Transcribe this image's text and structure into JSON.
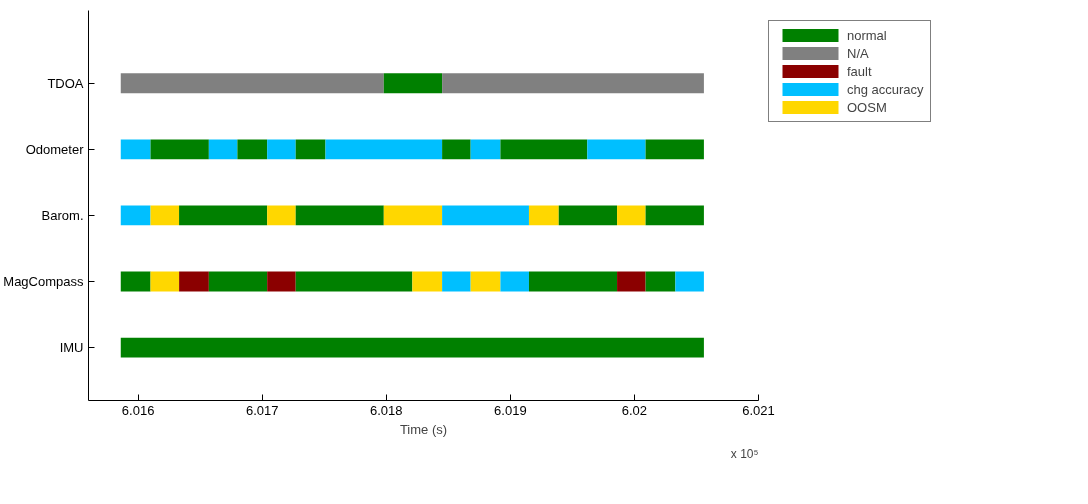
{
  "chart_data": {
    "type": "bar",
    "orientation": "horizontal",
    "xlabel": "Time (s)",
    "categories": [
      "TDOA",
      "Odometer",
      "Barom.",
      "MagCompass",
      "IMU"
    ],
    "xlim": [
      6.0156,
      6.021
    ],
    "xticks": [
      6.016,
      6.017,
      6.018,
      6.019,
      6.02,
      6.021
    ],
    "annotations": [
      "x 10⁵"
    ],
    "grid": false,
    "legend": "right",
    "series": [
      {
        "name": "normal",
        "color": "#008000",
        "base": [
          null,
          null,
          null,
          6.01586,
          6.01586
        ],
        "values": [
          null,
          null,
          null,
          0.00024,
          0.0047
        ]
      },
      {
        "name": "N/A",
        "color": "#808080",
        "base": [
          6.01586,
          null,
          null,
          null,
          null
        ],
        "values": [
          0.00212,
          null,
          null,
          null,
          null
        ]
      },
      {
        "name": "fault",
        "color": "#8b0000",
        "base": [
          null,
          null,
          null,
          6.01633,
          null
        ],
        "values": [
          null,
          null,
          null,
          0.00024,
          null
        ]
      },
      {
        "name": "chg accuracy",
        "color": "#00bfff",
        "base": [
          null,
          6.01586,
          6.01586,
          null,
          null
        ],
        "values": [
          null,
          0.00024,
          0.00024,
          null,
          null
        ]
      },
      {
        "name": "OOSM",
        "color": "#ffd700",
        "base": [
          null,
          null,
          6.0161,
          6.0161,
          null
        ],
        "values": [
          null,
          null,
          0.00023,
          0.00023,
          null
        ]
      },
      {
        "color": "#008000",
        "base": [
          6.01798,
          6.0161,
          null,
          null,
          null
        ],
        "values": [
          0.00047,
          0.00047,
          null,
          null,
          null
        ]
      },
      {
        "color": "#808080",
        "base": [
          6.01845,
          null,
          null,
          null,
          null
        ],
        "values": [
          0.00211,
          null,
          null,
          null,
          null
        ]
      },
      {
        "color": "#00bfff",
        "base": [
          null,
          6.01657,
          null,
          null,
          null
        ],
        "values": [
          null,
          0.00023,
          null,
          null,
          null
        ]
      },
      {
        "color": "#008000",
        "base": [
          null,
          null,
          6.01633,
          null,
          null
        ],
        "values": [
          null,
          null,
          0.00071,
          null,
          null
        ]
      },
      {
        "color": "#008000",
        "base": [
          null,
          6.0168,
          null,
          6.01657,
          null
        ],
        "values": [
          null,
          0.00024,
          null,
          0.00047,
          null
        ]
      },
      {
        "color": "#ffd700",
        "base": [
          null,
          null,
          6.01704,
          null,
          null
        ],
        "values": [
          null,
          null,
          0.00023,
          null,
          null
        ]
      },
      {
        "color": "#00bfff",
        "base": [
          null,
          6.01704,
          null,
          null,
          null
        ],
        "values": [
          null,
          0.00023,
          null,
          null,
          null
        ]
      },
      {
        "color": "#008000",
        "base": [
          null,
          null,
          6.01727,
          null,
          null
        ],
        "values": [
          null,
          null,
          0.00071,
          null,
          null
        ]
      },
      {
        "color": "#8b0000",
        "base": [
          null,
          null,
          null,
          6.01704,
          null
        ],
        "values": [
          null,
          null,
          null,
          0.00023,
          null
        ]
      },
      {
        "color": "#008000",
        "base": [
          null,
          6.01727,
          null,
          6.01727,
          null
        ],
        "values": [
          null,
          0.00024,
          null,
          0.00094,
          null
        ]
      },
      {
        "color": "#ffd700",
        "base": [
          null,
          null,
          6.01798,
          null,
          null
        ],
        "values": [
          null,
          null,
          0.00047,
          null,
          null
        ]
      },
      {
        "color": "#00bfff",
        "base": [
          null,
          6.01751,
          6.01845,
          null,
          null
        ],
        "values": [
          null,
          0.00094,
          0.0007,
          null,
          null
        ]
      },
      {
        "color": "#ffd700",
        "base": [
          null,
          null,
          null,
          6.01821,
          null
        ],
        "values": [
          null,
          null,
          null,
          0.00024,
          null
        ]
      },
      {
        "color": "#008000",
        "base": [
          null,
          6.01845,
          null,
          null,
          null
        ],
        "values": [
          null,
          0.00023,
          null,
          null,
          null
        ]
      },
      {
        "color": "#ffd700",
        "base": [
          null,
          null,
          6.01915,
          null,
          null
        ],
        "values": [
          null,
          null,
          0.00024,
          null,
          null
        ]
      },
      {
        "color": "#00bfff",
        "base": [
          null,
          null,
          null,
          6.01845,
          null
        ],
        "values": [
          null,
          null,
          null,
          0.00023,
          null
        ]
      },
      {
        "color": "#00bfff",
        "base": [
          null,
          6.01868,
          null,
          null,
          null
        ],
        "values": [
          null,
          0.00024,
          null,
          null,
          null
        ]
      },
      {
        "color": "#008000",
        "base": [
          null,
          null,
          6.01939,
          null,
          null
        ],
        "values": [
          null,
          null,
          0.00047,
          null,
          null
        ]
      },
      {
        "color": "#ffd700",
        "base": [
          null,
          null,
          null,
          6.01868,
          null
        ],
        "values": [
          null,
          null,
          null,
          0.00024,
          null
        ]
      },
      {
        "color": "#008000",
        "base": [
          null,
          6.01892,
          null,
          null,
          null
        ],
        "values": [
          null,
          0.0007,
          null,
          null,
          null
        ]
      },
      {
        "color": "#ffd700",
        "base": [
          null,
          null,
          6.01986,
          null,
          null
        ],
        "values": [
          null,
          null,
          0.00023,
          null,
          null
        ]
      },
      {
        "color": "#00bfff",
        "base": [
          null,
          null,
          null,
          6.01892,
          null
        ],
        "values": [
          null,
          null,
          null,
          0.00023,
          null
        ]
      },
      {
        "color": "#00bfff",
        "base": [
          null,
          6.01962,
          null,
          null,
          null
        ],
        "values": [
          null,
          0.00047,
          null,
          null,
          null
        ]
      },
      {
        "color": "#008000",
        "base": [
          null,
          null,
          6.02009,
          6.01915,
          null
        ],
        "values": [
          null,
          null,
          0.00047,
          0.00071,
          null
        ]
      },
      {
        "color": "#008000",
        "base": [
          null,
          6.02009,
          null,
          null,
          null
        ],
        "values": [
          null,
          0.00047,
          null,
          null,
          null
        ]
      },
      {
        "color": "#8b0000",
        "base": [
          null,
          null,
          null,
          6.01986,
          null
        ],
        "values": [
          null,
          null,
          null,
          0.00023,
          null
        ]
      },
      {
        "color": "#008000",
        "base": [
          null,
          null,
          null,
          6.02009,
          null
        ],
        "values": [
          null,
          null,
          null,
          0.00024,
          null
        ]
      },
      {
        "color": "#00bfff",
        "base": [
          null,
          null,
          null,
          6.02033,
          null
        ],
        "values": [
          null,
          null,
          null,
          0.00023,
          null
        ]
      }
    ]
  }
}
